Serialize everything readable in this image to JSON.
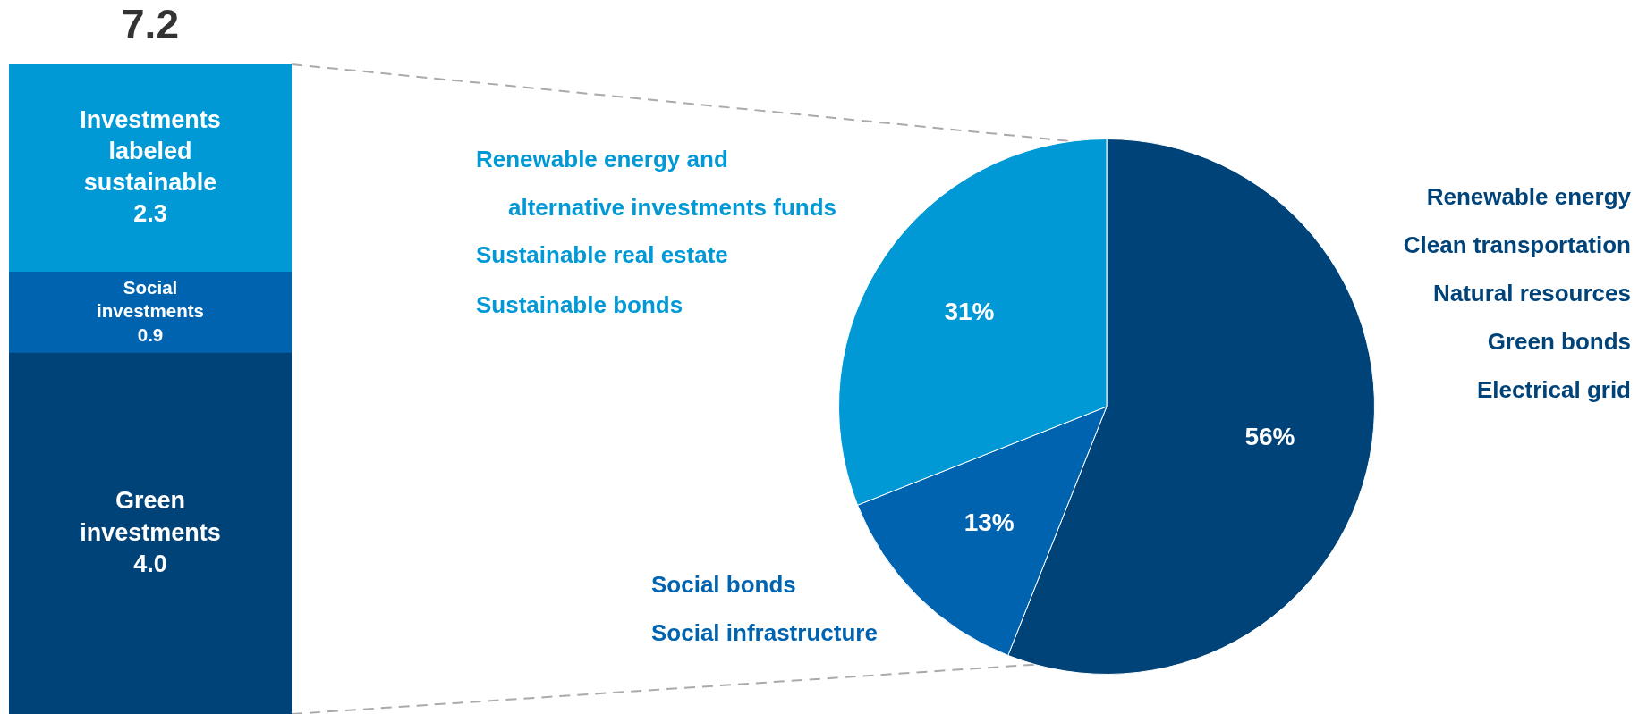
{
  "chart_data": [
    {
      "type": "bar",
      "stacked": true,
      "categories": [
        null
      ],
      "totals": [
        "7.2"
      ],
      "series": [
        {
          "name": "Green investments",
          "color": "#004379",
          "values": [
            4.0
          ],
          "value_labels": [
            "4.0"
          ]
        },
        {
          "name": "Social investments",
          "color": "#0063b0",
          "values": [
            0.9
          ],
          "value_labels": [
            "0.9"
          ]
        },
        {
          "name": "Investments labeled sustainable",
          "color": "#0099d6",
          "values": [
            2.3
          ],
          "value_labels": [
            "2.3"
          ]
        }
      ]
    },
    {
      "type": "pie",
      "categories": [
        null,
        null,
        null
      ],
      "values": [
        56,
        13,
        31
      ],
      "value_labels": [
        "56%",
        "13%",
        "31%"
      ],
      "colors": [
        "#004379",
        "#0063b0",
        "#0099d6"
      ],
      "annotations": [
        "Renewable energy and\nalternative investments funds",
        "Sustainable real estate",
        "Sustainable bonds",
        "Renewable energy",
        "Clean transportation",
        "Natural resources",
        "Green bonds",
        "Electrical grid",
        "Social bonds",
        "Social infrastructure"
      ]
    }
  ]
}
